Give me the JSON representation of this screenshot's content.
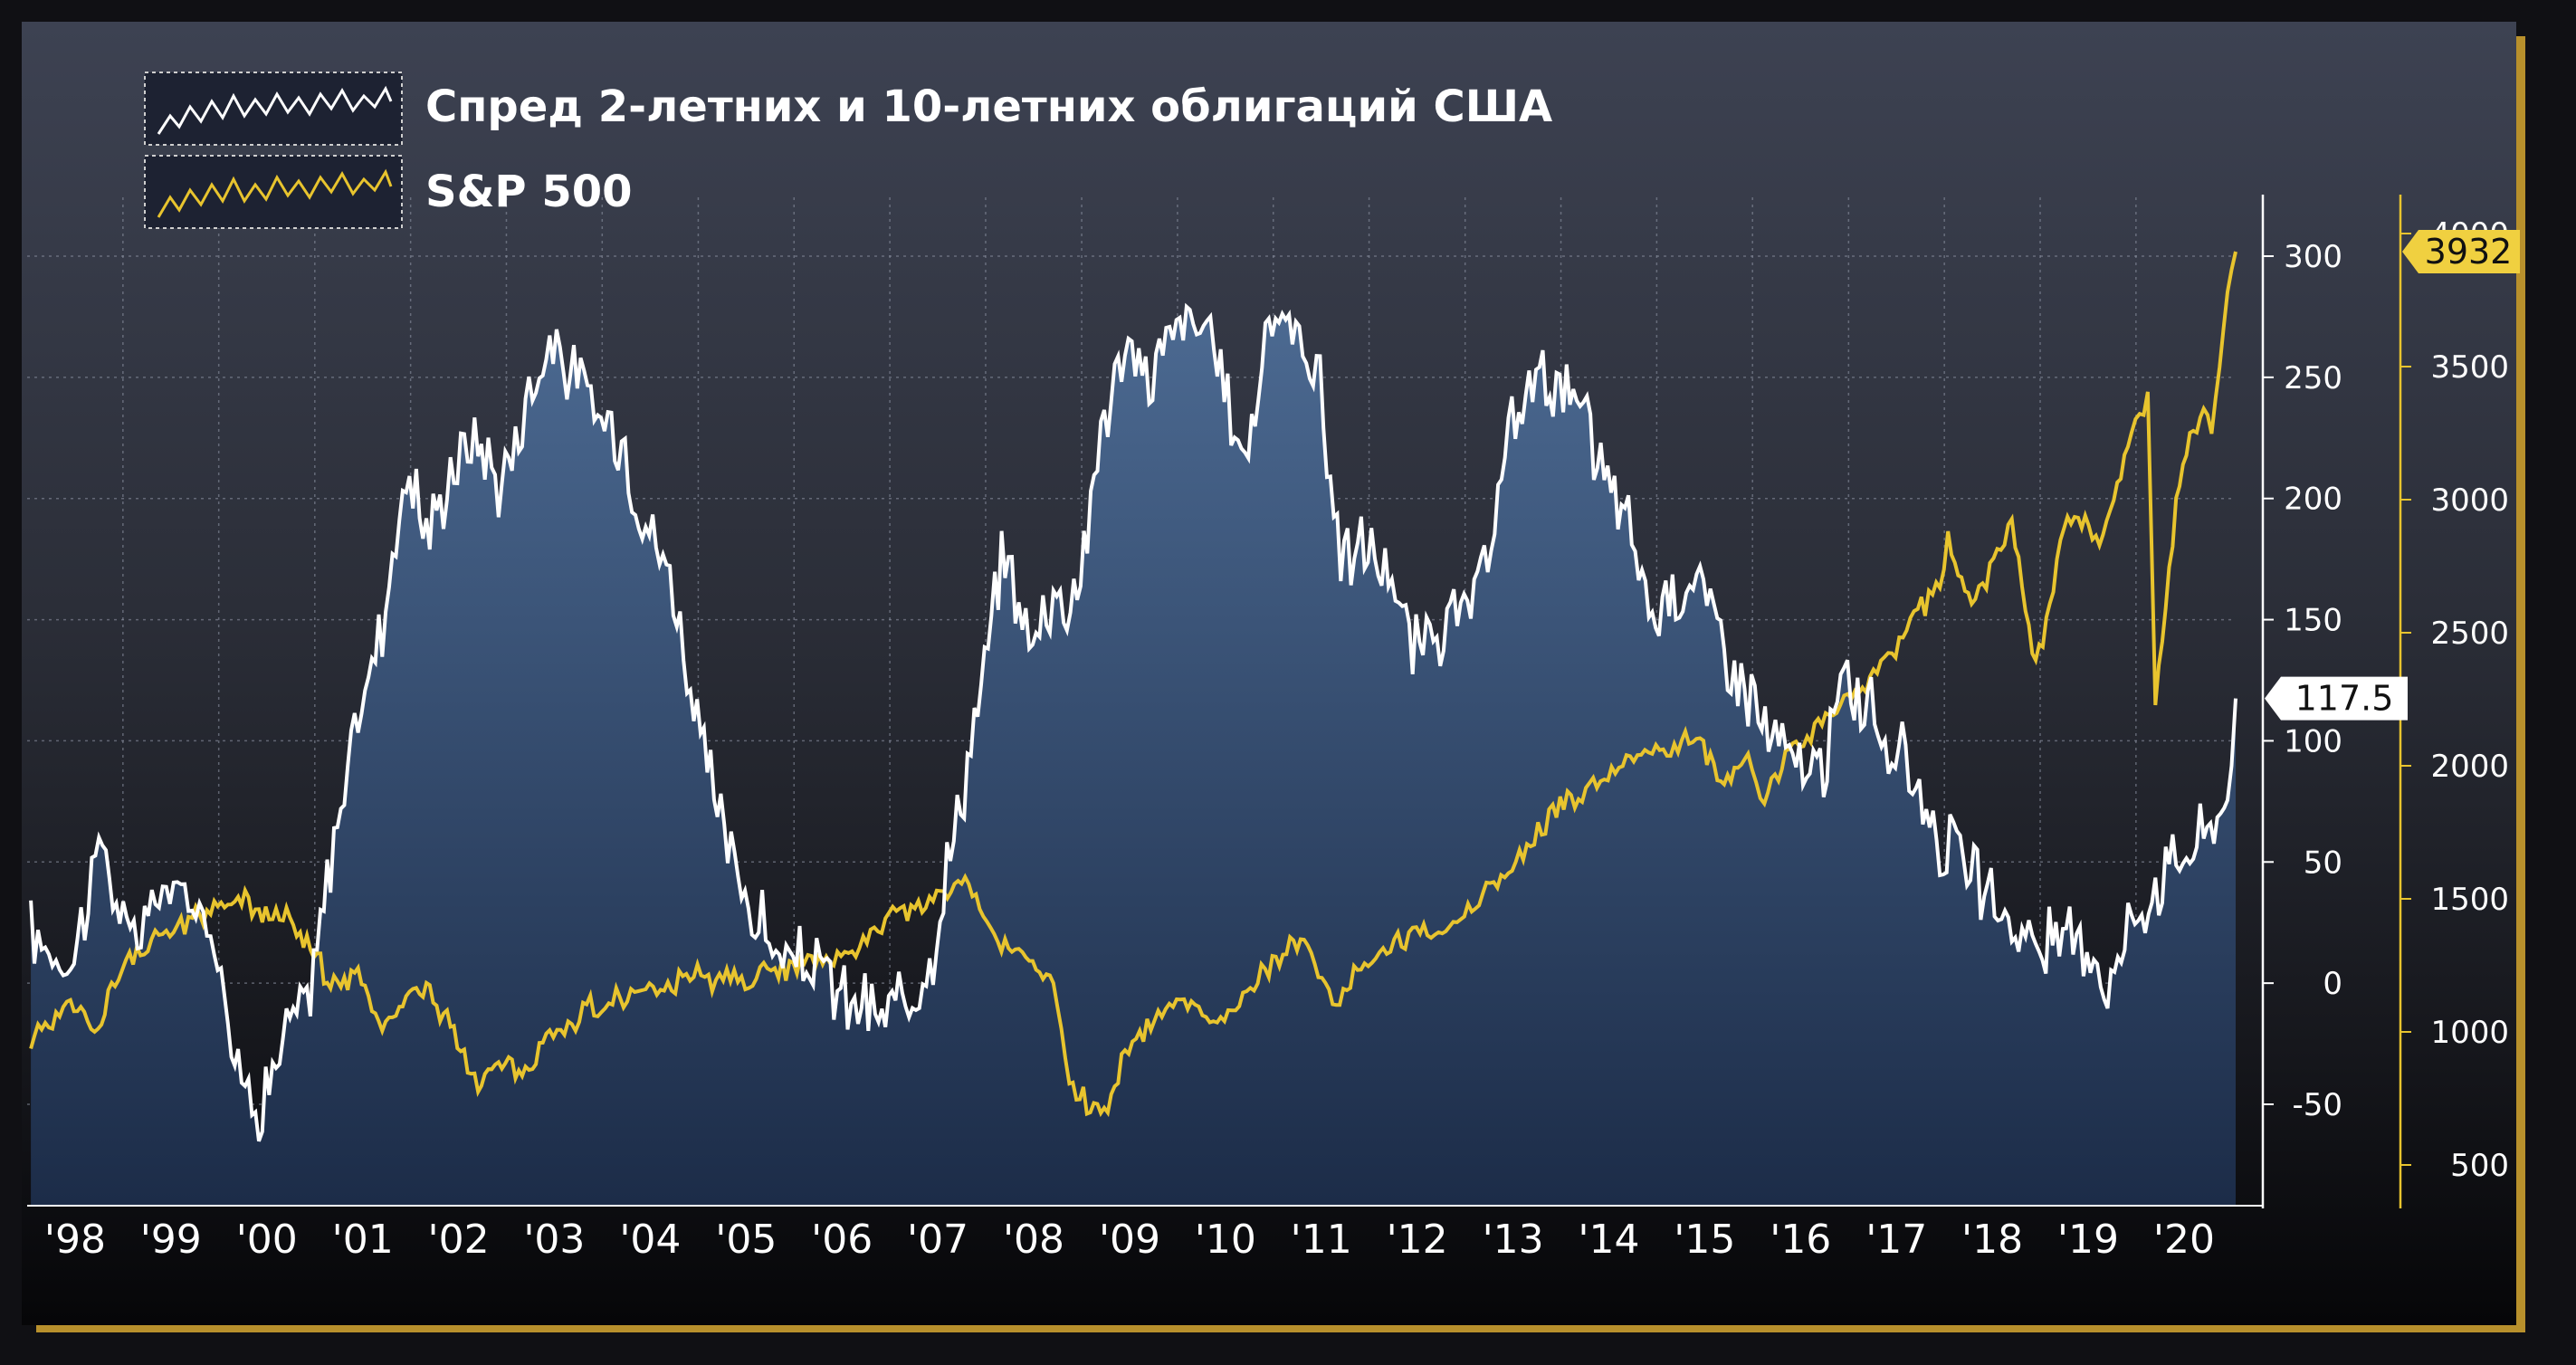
{
  "chart_data": {
    "type": "line",
    "x_range": [
      "1998-01-01",
      "2021-01-08"
    ],
    "x_ticks": [
      "'98",
      "'99",
      "'00",
      "'01",
      "'02",
      "'03",
      "'04",
      "'05",
      "'06",
      "'07",
      "'08",
      "'09",
      "'10",
      "'11",
      "'12",
      "'13",
      "'14",
      "'15",
      "'16",
      "'17",
      "'18",
      "'19",
      "'20"
    ],
    "series": [
      {
        "name": "Спред 2-летних и 10-летних облигаций США",
        "axis": "left",
        "color": "#ffffff",
        "fill": true,
        "last_value_label": "117.5",
        "ylim": [
          -90,
          320
        ],
        "y_ticks": [
          "300",
          "250",
          "200",
          "150",
          "100",
          "50",
          "0",
          "-50"
        ],
        "points": [
          {
            "x": "1998-01",
            "y": 20
          },
          {
            "x": "1998-06",
            "y": 8
          },
          {
            "x": "1998-10",
            "y": 60
          },
          {
            "x": "1999-01",
            "y": 15
          },
          {
            "x": "1999-06",
            "y": 40
          },
          {
            "x": "1999-12",
            "y": 25
          },
          {
            "x": "2000-03",
            "y": -40
          },
          {
            "x": "2000-06",
            "y": -50
          },
          {
            "x": "2000-09",
            "y": -20
          },
          {
            "x": "2000-12",
            "y": -5
          },
          {
            "x": "2001-03",
            "y": 60
          },
          {
            "x": "2001-06",
            "y": 110
          },
          {
            "x": "2001-09",
            "y": 150
          },
          {
            "x": "2001-12",
            "y": 210
          },
          {
            "x": "2002-03",
            "y": 185
          },
          {
            "x": "2002-06",
            "y": 215
          },
          {
            "x": "2002-09",
            "y": 225
          },
          {
            "x": "2002-12",
            "y": 205
          },
          {
            "x": "2003-03",
            "y": 240
          },
          {
            "x": "2003-06",
            "y": 265
          },
          {
            "x": "2003-09",
            "y": 250
          },
          {
            "x": "2003-12",
            "y": 235
          },
          {
            "x": "2004-03",
            "y": 225
          },
          {
            "x": "2004-06",
            "y": 190
          },
          {
            "x": "2004-09",
            "y": 170
          },
          {
            "x": "2004-12",
            "y": 115
          },
          {
            "x": "2005-03",
            "y": 70
          },
          {
            "x": "2005-06",
            "y": 40
          },
          {
            "x": "2005-09",
            "y": 20
          },
          {
            "x": "2005-12",
            "y": 5
          },
          {
            "x": "2006-03",
            "y": 10
          },
          {
            "x": "2006-06",
            "y": -5
          },
          {
            "x": "2006-09",
            "y": -10
          },
          {
            "x": "2006-12",
            "y": -15
          },
          {
            "x": "2007-03",
            "y": -5
          },
          {
            "x": "2007-06",
            "y": 15
          },
          {
            "x": "2007-09",
            "y": 70
          },
          {
            "x": "2007-12",
            "y": 120
          },
          {
            "x": "2008-03",
            "y": 180
          },
          {
            "x": "2008-06",
            "y": 140
          },
          {
            "x": "2008-09",
            "y": 160
          },
          {
            "x": "2008-12",
            "y": 160
          },
          {
            "x": "2009-03",
            "y": 230
          },
          {
            "x": "2009-06",
            "y": 260
          },
          {
            "x": "2009-09",
            "y": 250
          },
          {
            "x": "2009-12",
            "y": 270
          },
          {
            "x": "2010-03",
            "y": 275
          },
          {
            "x": "2010-06",
            "y": 250
          },
          {
            "x": "2010-09",
            "y": 215
          },
          {
            "x": "2010-12",
            "y": 275
          },
          {
            "x": "2011-03",
            "y": 270
          },
          {
            "x": "2011-06",
            "y": 255
          },
          {
            "x": "2011-09",
            "y": 175
          },
          {
            "x": "2011-12",
            "y": 180
          },
          {
            "x": "2012-03",
            "y": 170
          },
          {
            "x": "2012-06",
            "y": 135
          },
          {
            "x": "2012-09",
            "y": 145
          },
          {
            "x": "2012-12",
            "y": 150
          },
          {
            "x": "2013-03",
            "y": 165
          },
          {
            "x": "2013-06",
            "y": 225
          },
          {
            "x": "2013-09",
            "y": 250
          },
          {
            "x": "2013-12",
            "y": 250
          },
          {
            "x": "2014-03",
            "y": 235
          },
          {
            "x": "2014-06",
            "y": 210
          },
          {
            "x": "2014-09",
            "y": 190
          },
          {
            "x": "2014-12",
            "y": 150
          },
          {
            "x": "2015-03",
            "y": 165
          },
          {
            "x": "2015-06",
            "y": 165
          },
          {
            "x": "2015-09",
            "y": 140
          },
          {
            "x": "2015-12",
            "y": 120
          },
          {
            "x": "2016-03",
            "y": 100
          },
          {
            "x": "2016-06",
            "y": 90
          },
          {
            "x": "2016-09",
            "y": 85
          },
          {
            "x": "2016-12",
            "y": 125
          },
          {
            "x": "2017-03",
            "y": 115
          },
          {
            "x": "2017-06",
            "y": 95
          },
          {
            "x": "2017-09",
            "y": 85
          },
          {
            "x": "2017-12",
            "y": 60
          },
          {
            "x": "2018-03",
            "y": 50
          },
          {
            "x": "2018-06",
            "y": 35
          },
          {
            "x": "2018-09",
            "y": 25
          },
          {
            "x": "2018-12",
            "y": 15
          },
          {
            "x": "2019-03",
            "y": 15
          },
          {
            "x": "2019-06",
            "y": 20
          },
          {
            "x": "2019-09",
            "y": 0
          },
          {
            "x": "2019-12",
            "y": 25
          },
          {
            "x": "2020-03",
            "y": 40
          },
          {
            "x": "2020-06",
            "y": 55
          },
          {
            "x": "2020-09",
            "y": 60
          },
          {
            "x": "2020-12",
            "y": 80
          },
          {
            "x": "2021-01",
            "y": 117.5
          }
        ]
      },
      {
        "name": "S&P 500",
        "axis": "right",
        "color": "#e8c42e",
        "last_value_label": "3932",
        "ylim": [
          350,
          4100
        ],
        "y_ticks": [
          "4000",
          "3500",
          "3000",
          "2500",
          "2000",
          "1500",
          "1000",
          "500"
        ],
        "points": [
          {
            "x": "1998-01",
            "y": 970
          },
          {
            "x": "1998-06",
            "y": 1130
          },
          {
            "x": "1998-09",
            "y": 990
          },
          {
            "x": "1998-12",
            "y": 1230
          },
          {
            "x": "1999-06",
            "y": 1370
          },
          {
            "x": "1999-12",
            "y": 1470
          },
          {
            "x": "2000-03",
            "y": 1500
          },
          {
            "x": "2000-06",
            "y": 1450
          },
          {
            "x": "2000-09",
            "y": 1440
          },
          {
            "x": "2000-12",
            "y": 1320
          },
          {
            "x": "2001-03",
            "y": 1160
          },
          {
            "x": "2001-06",
            "y": 1220
          },
          {
            "x": "2001-09",
            "y": 1000
          },
          {
            "x": "2001-12",
            "y": 1150
          },
          {
            "x": "2002-03",
            "y": 1150
          },
          {
            "x": "2002-06",
            "y": 990
          },
          {
            "x": "2002-09",
            "y": 820
          },
          {
            "x": "2002-12",
            "y": 880
          },
          {
            "x": "2003-03",
            "y": 840
          },
          {
            "x": "2003-06",
            "y": 980
          },
          {
            "x": "2003-12",
            "y": 1110
          },
          {
            "x": "2004-06",
            "y": 1140
          },
          {
            "x": "2004-12",
            "y": 1200
          },
          {
            "x": "2005-06",
            "y": 1190
          },
          {
            "x": "2005-12",
            "y": 1250
          },
          {
            "x": "2006-06",
            "y": 1270
          },
          {
            "x": "2006-12",
            "y": 1420
          },
          {
            "x": "2007-06",
            "y": 1500
          },
          {
            "x": "2007-10",
            "y": 1560
          },
          {
            "x": "2008-03",
            "y": 1320
          },
          {
            "x": "2008-06",
            "y": 1280
          },
          {
            "x": "2008-09",
            "y": 1160
          },
          {
            "x": "2008-11",
            "y": 800
          },
          {
            "x": "2009-03",
            "y": 680
          },
          {
            "x": "2009-06",
            "y": 920
          },
          {
            "x": "2009-12",
            "y": 1110
          },
          {
            "x": "2010-06",
            "y": 1030
          },
          {
            "x": "2010-12",
            "y": 1250
          },
          {
            "x": "2011-04",
            "y": 1360
          },
          {
            "x": "2011-08",
            "y": 1120
          },
          {
            "x": "2011-12",
            "y": 1260
          },
          {
            "x": "2012-06",
            "y": 1360
          },
          {
            "x": "2012-12",
            "y": 1420
          },
          {
            "x": "2013-06",
            "y": 1610
          },
          {
            "x": "2013-12",
            "y": 1830
          },
          {
            "x": "2014-06",
            "y": 1960
          },
          {
            "x": "2014-12",
            "y": 2050
          },
          {
            "x": "2015-06",
            "y": 2100
          },
          {
            "x": "2015-09",
            "y": 1920
          },
          {
            "x": "2015-12",
            "y": 2040
          },
          {
            "x": "2016-02",
            "y": 1860
          },
          {
            "x": "2016-06",
            "y": 2090
          },
          {
            "x": "2016-12",
            "y": 2240
          },
          {
            "x": "2017-06",
            "y": 2430
          },
          {
            "x": "2017-12",
            "y": 2680
          },
          {
            "x": "2018-01",
            "y": 2870
          },
          {
            "x": "2018-04",
            "y": 2600
          },
          {
            "x": "2018-09",
            "y": 2910
          },
          {
            "x": "2018-12",
            "y": 2350
          },
          {
            "x": "2019-04",
            "y": 2940
          },
          {
            "x": "2019-08",
            "y": 2850
          },
          {
            "x": "2019-12",
            "y": 3230
          },
          {
            "x": "2020-02",
            "y": 3380
          },
          {
            "x": "2020-03",
            "y": 2240
          },
          {
            "x": "2020-06",
            "y": 3100
          },
          {
            "x": "2020-09",
            "y": 3360
          },
          {
            "x": "2020-10",
            "y": 3270
          },
          {
            "x": "2020-12",
            "y": 3750
          },
          {
            "x": "2021-01",
            "y": 3932
          }
        ]
      }
    ],
    "legend_position": "top-left",
    "grid": true
  }
}
